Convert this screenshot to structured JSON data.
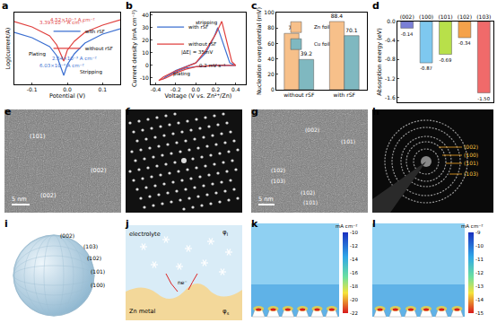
{
  "chart_data": [
    {
      "label": "a",
      "type": "line",
      "x_label": "Potential (V)",
      "y_label": "Log(current/A)",
      "xlim": [
        -0.15,
        0.15
      ],
      "xticks": [
        -0.1,
        {
          "value": 0,
          "label": "0.0"
        },
        0.1
      ],
      "ylim": [
        -5.5,
        -1.5
      ],
      "tick_labels": "x",
      "legend": "right",
      "x": [
        -0.15,
        -0.1,
        -0.05,
        -0.03,
        -0.01,
        0.0,
        0.02,
        0.05,
        0.1,
        0.15
      ],
      "series": [
        {
          "name": "with rSF",
          "color": "#3b6fd1",
          "values": [
            -2.6,
            -2.9,
            -3.4,
            -3.9,
            -5.0,
            -4.4,
            -3.8,
            -3.2,
            -2.7,
            -2.4
          ]
        },
        {
          "name": "without rSF",
          "color": "#e0413f",
          "values": [
            -2.0,
            -2.3,
            -2.8,
            -3.3,
            -4.2,
            -3.6,
            -3.1,
            -2.6,
            -2.2,
            -1.9
          ]
        }
      ],
      "annotations": [
        {
          "text": "3.39×10⁻³ A cm⁻²",
          "color": "#e0413f"
        },
        {
          "text": "4.52×10⁻³ A cm⁻²",
          "color": "#e0413f"
        },
        {
          "text": "6.03×10⁻⁴ A cm⁻²",
          "color": "#3b6fd1"
        },
        {
          "text": "2.54×10⁻³ A cm⁻²",
          "color": "#3b6fd1"
        },
        {
          "text": "Plating",
          "color": "#000000"
        },
        {
          "text": "Stripping",
          "color": "#000000"
        }
      ]
    },
    {
      "label": "b",
      "type": "line",
      "x_label": "Voltage (V vs. Zn²⁺/Zn)",
      "y_label": "Current density (mA cm⁻²)",
      "xlim": [
        -0.45,
        0.5
      ],
      "xticks": [
        -0.4,
        -0.2,
        {
          "value": 0,
          "label": "0.0"
        },
        0.2,
        0.4
      ],
      "ylim": [
        -15,
        42
      ],
      "yticks": [
        -10,
        0,
        10,
        20,
        30,
        40
      ],
      "legend": "upper left",
      "series": [
        {
          "name": "with rSF",
          "color": "#3b6fd1",
          "x": [
            0.4,
            0.2,
            0.0,
            -0.1,
            -0.2,
            -0.3,
            -0.33,
            -0.28,
            -0.2,
            -0.1,
            0.0,
            0.1,
            0.18,
            0.22,
            0.28,
            0.34,
            0.4
          ],
          "values": [
            0,
            0,
            -1,
            -2,
            -5,
            -9,
            -11,
            -8,
            -4,
            -1,
            2,
            10,
            22,
            30,
            16,
            2,
            0
          ]
        },
        {
          "name": "without rSF",
          "color": "#e0413f",
          "x": [
            0.4,
            0.2,
            0.0,
            -0.1,
            -0.2,
            -0.3,
            -0.37,
            -0.32,
            -0.22,
            -0.1,
            0.0,
            0.1,
            0.2,
            0.26,
            0.31,
            0.36,
            0.4
          ],
          "values": [
            0,
            0,
            -1,
            -3,
            -6,
            -10,
            -12,
            -9,
            -5,
            -1,
            2,
            12,
            25,
            35,
            20,
            3,
            0
          ]
        }
      ],
      "annotations": [
        {
          "text": "stripping",
          "color": "#000000"
        },
        {
          "text": "plating",
          "color": "#000000"
        },
        {
          "text": "|ΔE| = 35mV",
          "color": "#000000"
        },
        {
          "text": "0.2 mV s⁻¹",
          "color": "#000000"
        }
      ]
    },
    {
      "label": "c",
      "type": "bar",
      "y_label": "Nucleation overpotential (mV)",
      "categories": [
        "without rSF",
        "with rSF"
      ],
      "ylim": [
        0,
        100
      ],
      "yticks": [
        0,
        20,
        40,
        60,
        80,
        100
      ],
      "legend": "upper left",
      "data_labels": true,
      "series": [
        {
          "name": "Zn foil",
          "color": "#f7c08a",
          "values": [
            73,
            88.4
          ]
        },
        {
          "name": "Cu foil",
          "color": "#7fb8c0",
          "values": [
            39.2,
            70.1
          ]
        }
      ]
    },
    {
      "label": "d",
      "type": "bar",
      "y_label": "Absorption energy (eV)",
      "categories": [
        "(002)",
        "(100)",
        "(101)",
        "(102)",
        "(103)"
      ],
      "values": [
        -0.14,
        -0.87,
        -0.69,
        -0.34,
        -1.5
      ],
      "value_labels": [
        "-0.14",
        "-0.87",
        "-0.69",
        "-0.34",
        "-1.50"
      ],
      "colors": [
        "#7a7fd6",
        "#7ec8ef",
        "#b8e04a",
        "#f5a24a",
        "#f06a6a"
      ],
      "ylim": [
        -1.7,
        0
      ],
      "yticks": [
        {
          "value": 0,
          "label": "0.0"
        },
        -0.4,
        -0.8,
        -1.2,
        -1.6
      ],
      "data_labels": true
    }
  ],
  "panels": {
    "e": {
      "label": "e",
      "texts": [
        "(101)",
        "(002)",
        "(002)"
      ],
      "scale_bar": "5 nm"
    },
    "f": {
      "label": "f"
    },
    "g": {
      "label": "g",
      "texts": [
        "(002)",
        "(101)",
        "(102)",
        "(103)",
        "(102)",
        "(101)"
      ],
      "scale_bar": "5 nm"
    },
    "h": {
      "label": "h",
      "texts": [
        "(002)",
        "(100)",
        "(101)",
        "(103)"
      ]
    },
    "i": {
      "label": "i",
      "texts": [
        "(002)",
        "(103)",
        "(102)",
        "(101)",
        "(100)"
      ]
    },
    "j": {
      "label": "j",
      "electrolyte": "electrolyte",
      "phi": "φ",
      "sub_l": "l",
      "sub_s": "s",
      "electrons": "ne⁻",
      "metal": "Zn metal"
    },
    "k": {
      "label": "k",
      "unit": "mA cm⁻²",
      "colorbar_ticks": [
        -10,
        -12,
        -14,
        -16,
        -18,
        -20,
        -22
      ]
    },
    "l": {
      "label": "l",
      "unit": "mA cm⁻²",
      "colorbar_ticks": [
        -9,
        -10,
        -11,
        -12,
        -13,
        -14,
        -15
      ]
    }
  }
}
